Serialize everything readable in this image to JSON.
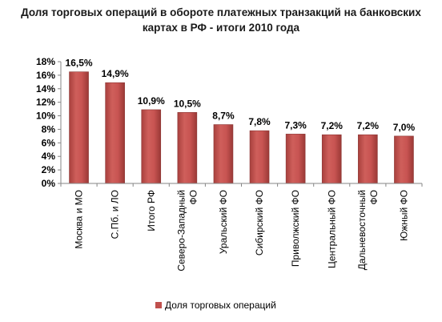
{
  "chart_data": {
    "type": "bar",
    "title_lines": [
      "Доля торговых операций в обороте платежных транзакций на банковских",
      "картах в РФ - итоги 2010 года"
    ],
    "categories": [
      [
        "Москва и МО"
      ],
      [
        "С.Пб. и ЛО"
      ],
      [
        "Итого РФ"
      ],
      [
        "Северо-Западный",
        "ФО"
      ],
      [
        "Уральский ФО"
      ],
      [
        "Сибирский ФО"
      ],
      [
        "Приволжский ФО"
      ],
      [
        "Центральный ФО"
      ],
      [
        "Дальневосточный",
        "ФО"
      ],
      [
        "Южный ФО"
      ]
    ],
    "series": [
      {
        "name": "Доля торговых операций",
        "values": [
          16.5,
          14.9,
          10.9,
          10.5,
          8.7,
          7.8,
          7.3,
          7.2,
          7.2,
          7.0
        ],
        "data_labels": [
          "16,5%",
          "14,9%",
          "10,9%",
          "10,5%",
          "8,7%",
          "7,8%",
          "7,3%",
          "7,2%",
          "7,2%",
          "7,0%"
        ],
        "color": "#c0504d"
      }
    ],
    "y_ticks": [
      "0%",
      "2%",
      "4%",
      "6%",
      "8%",
      "10%",
      "12%",
      "14%",
      "16%",
      "18%"
    ],
    "ylim": [
      0,
      18
    ],
    "y_step": 2,
    "grid": false,
    "legend_position": "bottom"
  }
}
